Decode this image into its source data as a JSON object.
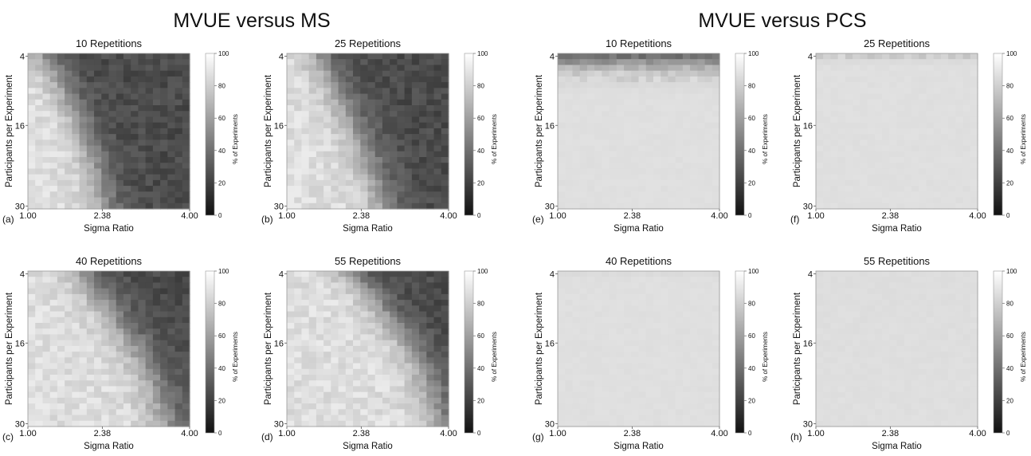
{
  "figure": {
    "group_titles": [
      "MVUE versus MS",
      "MVUE versus PCS"
    ]
  },
  "chart_data": [
    {
      "type": "heatmap",
      "panel": "(a)",
      "group": "MVUE versus MS",
      "title": "10 Repetitions",
      "xlabel": "Sigma Ratio",
      "ylabel": "Participants per Experiment",
      "xticks": [
        "1.00",
        "2.38",
        "4.00"
      ],
      "yticks": [
        "4",
        "16",
        "30"
      ],
      "xlim": [
        1.0,
        4.0
      ],
      "ylim": [
        4,
        30
      ],
      "colorbar": {
        "label": "% of Experiments",
        "ticks": [
          0,
          20,
          40,
          60,
          80,
          100
        ],
        "range": [
          0,
          100
        ]
      },
      "boundary": [
        [
          4,
          1.3
        ],
        [
          8,
          1.6
        ],
        [
          12,
          1.8
        ],
        [
          16,
          2.0
        ],
        [
          20,
          2.15
        ],
        [
          24,
          2.3
        ],
        [
          30,
          2.45
        ]
      ],
      "band_width": 0.4
    },
    {
      "type": "heatmap",
      "panel": "(b)",
      "group": "MVUE versus MS",
      "title": "25 Repetitions",
      "xlabel": "Sigma Ratio",
      "ylabel": "Participants per Experiment",
      "xticks": [
        "1.00",
        "2.38",
        "4.00"
      ],
      "yticks": [
        "4",
        "16",
        "30"
      ],
      "xlim": [
        1.0,
        4.0
      ],
      "ylim": [
        4,
        30
      ],
      "colorbar": {
        "label": "% of Experiments",
        "ticks": [
          0,
          20,
          40,
          60,
          80,
          100
        ],
        "range": [
          0,
          100
        ]
      },
      "boundary": [
        [
          4,
          1.6
        ],
        [
          8,
          1.85
        ],
        [
          12,
          2.05
        ],
        [
          16,
          2.25
        ],
        [
          20,
          2.45
        ],
        [
          24,
          2.6
        ],
        [
          30,
          2.8
        ]
      ],
      "band_width": 0.45
    },
    {
      "type": "heatmap",
      "panel": "(c)",
      "group": "MVUE versus MS",
      "title": "40 Repetitions",
      "xlabel": "Sigma Ratio",
      "ylabel": "Participants per Experiment",
      "xticks": [
        "1.00",
        "2.38",
        "4.00"
      ],
      "yticks": [
        "4",
        "16",
        "30"
      ],
      "xlim": [
        1.0,
        4.0
      ],
      "ylim": [
        4,
        30
      ],
      "colorbar": {
        "label": "% of Experiments",
        "ticks": [
          0,
          20,
          40,
          60,
          80,
          100
        ],
        "range": [
          0,
          100
        ]
      },
      "boundary": [
        [
          4,
          2.0
        ],
        [
          8,
          2.35
        ],
        [
          12,
          2.65
        ],
        [
          16,
          2.95
        ],
        [
          20,
          3.2
        ],
        [
          24,
          3.4
        ],
        [
          30,
          3.6
        ]
      ],
      "band_width": 0.5
    },
    {
      "type": "heatmap",
      "panel": "(d)",
      "group": "MVUE versus MS",
      "title": "55 Repetitions",
      "xlabel": "Sigma Ratio",
      "ylabel": "Participants per Experiment",
      "xticks": [
        "1.00",
        "2.38",
        "4.00"
      ],
      "yticks": [
        "4",
        "16",
        "30"
      ],
      "xlim": [
        1.0,
        4.0
      ],
      "ylim": [
        4,
        30
      ],
      "colorbar": {
        "label": "% of Experiments",
        "ticks": [
          0,
          20,
          40,
          60,
          80,
          100
        ],
        "range": [
          0,
          100
        ]
      },
      "boundary": [
        [
          4,
          2.2
        ],
        [
          8,
          2.6
        ],
        [
          12,
          2.95
        ],
        [
          16,
          3.25
        ],
        [
          20,
          3.5
        ],
        [
          24,
          3.7
        ],
        [
          30,
          3.85
        ]
      ],
      "band_width": 0.45
    },
    {
      "type": "heatmap",
      "panel": "(e)",
      "group": "MVUE versus PCS",
      "title": "10 Repetitions",
      "xlabel": "Sigma Ratio",
      "ylabel": "Participants per Experiment",
      "xticks": [
        "1.00",
        "2.38",
        "4.00"
      ],
      "yticks": [
        "4",
        "16",
        "30"
      ],
      "xlim": [
        1.0,
        4.0
      ],
      "ylim": [
        4,
        30
      ],
      "colorbar": {
        "label": "% of Experiments",
        "ticks": [
          0,
          20,
          40,
          60,
          80,
          100
        ],
        "range": [
          0,
          100
        ]
      },
      "row_values": [
        [
          4,
          38
        ],
        [
          5,
          55
        ],
        [
          6,
          72
        ],
        [
          7,
          83
        ],
        [
          8,
          88
        ],
        [
          9,
          91
        ],
        [
          10,
          93
        ],
        [
          11,
          94
        ],
        [
          30,
          94
        ]
      ]
    },
    {
      "type": "heatmap",
      "panel": "(f)",
      "group": "MVUE versus PCS",
      "title": "25 Repetitions",
      "xlabel": "Sigma Ratio",
      "ylabel": "Participants per Experiment",
      "xticks": [
        "1.00",
        "2.38",
        "4.00"
      ],
      "yticks": [
        "4",
        "16",
        "30"
      ],
      "xlim": [
        1.0,
        4.0
      ],
      "ylim": [
        4,
        30
      ],
      "colorbar": {
        "label": "% of Experiments",
        "ticks": [
          0,
          20,
          40,
          60,
          80,
          100
        ],
        "range": [
          0,
          100
        ]
      },
      "row_values": [
        [
          4,
          85
        ],
        [
          5,
          92
        ],
        [
          6,
          94
        ],
        [
          30,
          94
        ]
      ]
    },
    {
      "type": "heatmap",
      "panel": "(g)",
      "group": "MVUE versus PCS",
      "title": "40 Repetitions",
      "xlabel": "Sigma Ratio",
      "ylabel": "Participants per Experiment",
      "xticks": [
        "1.00",
        "2.38",
        "4.00"
      ],
      "yticks": [
        "4",
        "16",
        "30"
      ],
      "xlim": [
        1.0,
        4.0
      ],
      "ylim": [
        4,
        30
      ],
      "colorbar": {
        "label": "% of Experiments",
        "ticks": [
          0,
          20,
          40,
          60,
          80,
          100
        ],
        "range": [
          0,
          100
        ]
      },
      "row_values": [
        [
          4,
          92
        ],
        [
          5,
          94
        ],
        [
          30,
          94
        ]
      ]
    },
    {
      "type": "heatmap",
      "panel": "(h)",
      "group": "MVUE versus PCS",
      "title": "55 Repetitions",
      "xlabel": "Sigma Ratio",
      "ylabel": "Participants per Experiment",
      "xticks": [
        "1.00",
        "2.38",
        "4.00"
      ],
      "yticks": [
        "4",
        "16",
        "30"
      ],
      "xlim": [
        1.0,
        4.0
      ],
      "ylim": [
        4,
        30
      ],
      "colorbar": {
        "label": "% of Experiments",
        "ticks": [
          0,
          20,
          40,
          60,
          80,
          100
        ],
        "range": [
          0,
          100
        ]
      },
      "row_values": [
        [
          4,
          93
        ],
        [
          30,
          94
        ]
      ]
    }
  ]
}
